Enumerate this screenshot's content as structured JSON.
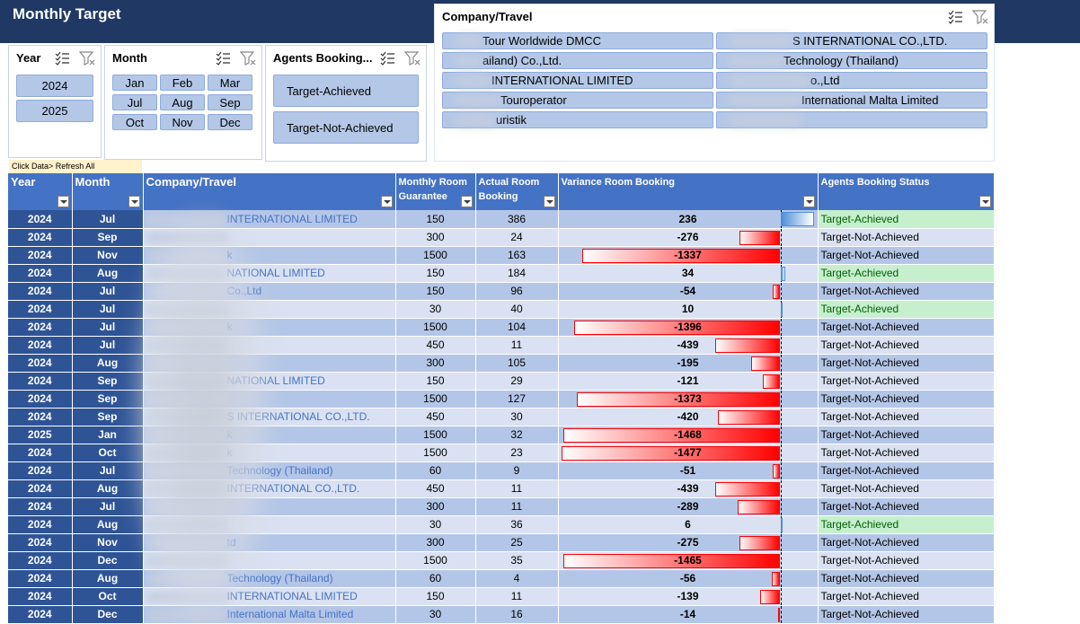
{
  "title": "Monthly Target",
  "refresh_note": "Click Data> Refresh All",
  "slicers": {
    "year": {
      "title": "Year",
      "items": [
        "2024",
        "2025"
      ]
    },
    "month": {
      "title": "Month",
      "items": [
        "Jan",
        "Feb",
        "Mar",
        "Jul",
        "Aug",
        "Sep",
        "Oct",
        "Nov",
        "Dec"
      ]
    },
    "agents": {
      "title": "Agents Booking...",
      "items": [
        "Target-Achieved",
        "Target-Not-Achieved"
      ]
    },
    "company": {
      "title": "Company/Travel",
      "items": [
        "Tour Worldwide DMCC",
        "S INTERNATIONAL CO.,LTD.",
        "ailand) Co.,Ltd.",
        "Technology (Thailand)",
        "INTERNATIONAL LIMITED",
        "o.,Ltd",
        "Touroperator",
        "International Malta Limited",
        "uristik",
        ""
      ]
    }
  },
  "table": {
    "headers": {
      "year": "Year",
      "month": "Month",
      "company": "Company/Travel",
      "guarantee": "Monthly Room Guarantee",
      "actual": "Actual Room Booking",
      "variance": "Variance Room Booking",
      "status": "Agents Booking Status"
    },
    "rows": [
      {
        "year": "2024",
        "month": "Jul",
        "company": "INTERNATIONAL LIMITED",
        "g": "150",
        "a": "386",
        "v": 236,
        "s": "Target-Achieved"
      },
      {
        "year": "2024",
        "month": "Sep",
        "company": "",
        "g": "300",
        "a": "24",
        "v": -276,
        "s": "Target-Not-Achieved"
      },
      {
        "year": "2024",
        "month": "Nov",
        "company": "k",
        "g": "1500",
        "a": "163",
        "v": -1337,
        "s": "Target-Not-Achieved"
      },
      {
        "year": "2024",
        "month": "Aug",
        "company": "NATIONAL LIMITED",
        "g": "150",
        "a": "184",
        "v": 34,
        "s": "Target-Achieved"
      },
      {
        "year": "2024",
        "month": "Jul",
        "company": "Co.,Ltd",
        "g": "150",
        "a": "96",
        "v": -54,
        "s": "Target-Not-Achieved"
      },
      {
        "year": "2024",
        "month": "Jul",
        "company": "",
        "g": "30",
        "a": "40",
        "v": 10,
        "s": "Target-Achieved"
      },
      {
        "year": "2024",
        "month": "Jul",
        "company": "k",
        "g": "1500",
        "a": "104",
        "v": -1396,
        "s": "Target-Not-Achieved"
      },
      {
        "year": "2024",
        "month": "Jul",
        "company": "",
        "g": "450",
        "a": "11",
        "v": -439,
        "s": "Target-Not-Achieved"
      },
      {
        "year": "2024",
        "month": "Aug",
        "company": "",
        "g": "300",
        "a": "105",
        "v": -195,
        "s": "Target-Not-Achieved"
      },
      {
        "year": "2024",
        "month": "Sep",
        "company": "NATIONAL LIMITED",
        "g": "150",
        "a": "29",
        "v": -121,
        "s": "Target-Not-Achieved"
      },
      {
        "year": "2024",
        "month": "Sep",
        "company": "",
        "g": "1500",
        "a": "127",
        "v": -1373,
        "s": "Target-Not-Achieved"
      },
      {
        "year": "2024",
        "month": "Sep",
        "company": "S INTERNATIONAL CO.,LTD.",
        "g": "450",
        "a": "30",
        "v": -420,
        "s": "Target-Not-Achieved"
      },
      {
        "year": "2025",
        "month": "Jan",
        "company": "k",
        "g": "1500",
        "a": "32",
        "v": -1468,
        "s": "Target-Not-Achieved"
      },
      {
        "year": "2024",
        "month": "Oct",
        "company": "k",
        "g": "1500",
        "a": "23",
        "v": -1477,
        "s": "Target-Not-Achieved"
      },
      {
        "year": "2024",
        "month": "Jul",
        "company": "Technology (Thailand)",
        "g": "60",
        "a": "9",
        "v": -51,
        "s": "Target-Not-Achieved"
      },
      {
        "year": "2024",
        "month": "Aug",
        "company": "INTERNATIONAL CO.,LTD.",
        "g": "450",
        "a": "11",
        "v": -439,
        "s": "Target-Not-Achieved"
      },
      {
        "year": "2024",
        "month": "Jul",
        "company": "",
        "g": "300",
        "a": "11",
        "v": -289,
        "s": "Target-Not-Achieved"
      },
      {
        "year": "2024",
        "month": "Aug",
        "company": "",
        "g": "30",
        "a": "36",
        "v": 6,
        "s": "Target-Achieved"
      },
      {
        "year": "2024",
        "month": "Nov",
        "company": "td",
        "g": "300",
        "a": "25",
        "v": -275,
        "s": "Target-Not-Achieved"
      },
      {
        "year": "2024",
        "month": "Dec",
        "company": "",
        "g": "1500",
        "a": "35",
        "v": -1465,
        "s": "Target-Not-Achieved"
      },
      {
        "year": "2024",
        "month": "Aug",
        "company": "Technology (Thailand)",
        "g": "60",
        "a": "4",
        "v": -56,
        "s": "Target-Not-Achieved"
      },
      {
        "year": "2024",
        "month": "Oct",
        "company": "INTERNATIONAL LIMITED",
        "g": "150",
        "a": "11",
        "v": -139,
        "s": "Target-Not-Achieved"
      },
      {
        "year": "2024",
        "month": "Dec",
        "company": "International Malta Limited",
        "g": "30",
        "a": "16",
        "v": -14,
        "s": "Target-Not-Achieved"
      }
    ]
  },
  "colors": {
    "header": "#1f3864",
    "table_header": "#4472c4",
    "neg_bar": "#ff0000",
    "pos_bar": "#4e8fd7",
    "achieved_fill": "#c6efce"
  }
}
